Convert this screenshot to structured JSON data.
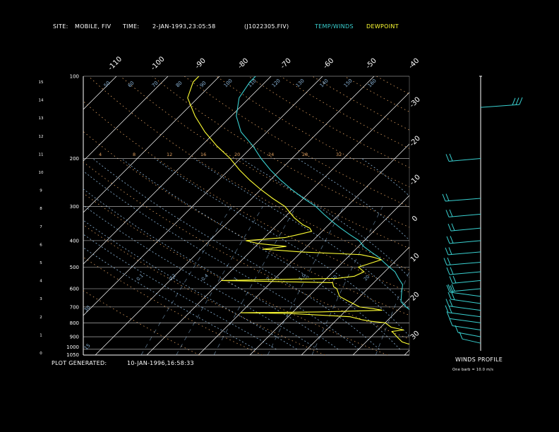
{
  "header": {
    "site_label": "SITE:",
    "site_value": "MOBILE, FIV",
    "time_label": "TIME:",
    "time_value": "2-JAN-1993,23:05:58",
    "file_id": "(J1022305.FIV)",
    "legend_temp": "TEMP/WINDS",
    "legend_dew": "DEWPOINT"
  },
  "footer": {
    "generated_label": "PLOT GENERATED:",
    "generated_value": "10-JAN-1996,16:58:33"
  },
  "wind_panel": {
    "title": "WINDS PROFILE",
    "note": "One barb = 10.0 m/s"
  },
  "colors": {
    "temperature": "#39d0d0",
    "dewpoint": "#ffff33",
    "isobar": "#ffffff",
    "isotherm": "#ffffff",
    "dry_adiabat": "#e0a060",
    "moist_adiabat": "#8ab4d8",
    "mixing_ratio": "#8ab4d8",
    "wind_barb": "#39d0d0",
    "header_temp": "#39d0d0",
    "header_dew": "#ffff33"
  },
  "chart_data": {
    "type": "line",
    "pressure_levels": [
      100,
      200,
      300,
      400,
      500,
      600,
      700,
      800,
      900,
      1000,
      1050
    ],
    "height_ticks_km": [
      0,
      1,
      2,
      3,
      4,
      5,
      6,
      7,
      8,
      9,
      10,
      11,
      12,
      13,
      14,
      15
    ],
    "top_isotherm_labels": [
      "-110",
      "-100",
      "-90",
      "-80",
      "-70",
      "-60",
      "-50",
      "-40"
    ],
    "right_isotherm_labels": [
      "-30",
      "-20",
      "-10",
      "0",
      "10",
      "20",
      "30"
    ],
    "dry_adiabat_labels": [
      "4",
      "8",
      "12",
      "16",
      "20",
      "24",
      "28",
      "32"
    ],
    "moist_adiabat_labels": [
      "15",
      "30",
      "50",
      "60",
      "70",
      "80",
      "90",
      "100",
      "110",
      "120",
      "130",
      "140",
      "150",
      "160"
    ],
    "mixing_ratio_labels": [
      "0.1",
      "0.2",
      "0.4",
      "1",
      "2",
      "5.0",
      "10",
      "20"
    ],
    "y_scale": "log",
    "ylim": [
      1050,
      100
    ],
    "series": [
      {
        "key": "temp",
        "points": [
          [
            1050,
            19
          ],
          [
            1000,
            15
          ],
          [
            975,
            13.5
          ],
          [
            950,
            12
          ],
          [
            925,
            10
          ],
          [
            900,
            9
          ],
          [
            880,
            8
          ],
          [
            850,
            7.5
          ],
          [
            820,
            6
          ],
          [
            790,
            5
          ],
          [
            760,
            4
          ],
          [
            720,
            2.5
          ],
          [
            700,
            1
          ],
          [
            670,
            -1
          ],
          [
            640,
            -2
          ],
          [
            610,
            -3
          ],
          [
            580,
            -4
          ],
          [
            550,
            -6
          ],
          [
            520,
            -8
          ],
          [
            500,
            -10
          ],
          [
            480,
            -12
          ],
          [
            460,
            -14
          ],
          [
            440,
            -16.5
          ],
          [
            420,
            -19
          ],
          [
            400,
            -21
          ],
          [
            380,
            -24
          ],
          [
            360,
            -27
          ],
          [
            340,
            -30
          ],
          [
            320,
            -33
          ],
          [
            300,
            -36
          ],
          [
            280,
            -40
          ],
          [
            260,
            -44
          ],
          [
            240,
            -48
          ],
          [
            220,
            -52
          ],
          [
            200,
            -56
          ],
          [
            180,
            -60
          ],
          [
            160,
            -65
          ],
          [
            140,
            -69
          ],
          [
            120,
            -72
          ],
          [
            105,
            -73
          ],
          [
            100,
            -73
          ]
        ]
      },
      {
        "key": "dew",
        "points": [
          [
            1050,
            14
          ],
          [
            1000,
            14
          ],
          [
            975,
            12
          ],
          [
            965,
            10
          ],
          [
            955,
            8.5
          ],
          [
            940,
            7
          ],
          [
            900,
            5
          ],
          [
            880,
            4
          ],
          [
            860,
            3
          ],
          [
            850,
            5
          ],
          [
            830,
            2
          ],
          [
            800,
            0
          ],
          [
            790,
            -3
          ],
          [
            780,
            -5
          ],
          [
            760,
            -8
          ],
          [
            740,
            -20
          ],
          [
            735,
            -30
          ],
          [
            730,
            -15
          ],
          [
            720,
            -3
          ],
          [
            710,
            -5
          ],
          [
            700,
            -8
          ],
          [
            680,
            -10
          ],
          [
            660,
            -12
          ],
          [
            640,
            -14
          ],
          [
            600,
            -16
          ],
          [
            590,
            -17
          ],
          [
            570,
            -18
          ],
          [
            560,
            -40
          ],
          [
            555,
            -30
          ],
          [
            550,
            -18
          ],
          [
            540,
            -15
          ],
          [
            520,
            -14
          ],
          [
            500,
            -16
          ],
          [
            490,
            -15
          ],
          [
            470,
            -13
          ],
          [
            460,
            -15
          ],
          [
            450,
            -18
          ],
          [
            440,
            -30
          ],
          [
            430,
            -38
          ],
          [
            420,
            -34
          ],
          [
            410,
            -40
          ],
          [
            400,
            -43
          ],
          [
            390,
            -36
          ],
          [
            380,
            -34
          ],
          [
            370,
            -32
          ],
          [
            360,
            -33
          ],
          [
            350,
            -35
          ],
          [
            330,
            -38
          ],
          [
            300,
            -42
          ],
          [
            280,
            -46
          ],
          [
            260,
            -50
          ],
          [
            240,
            -54
          ],
          [
            220,
            -58
          ],
          [
            200,
            -62
          ],
          [
            180,
            -67
          ],
          [
            160,
            -72
          ],
          [
            140,
            -77
          ],
          [
            120,
            -82
          ],
          [
            105,
            -84
          ],
          [
            100,
            -84
          ]
        ]
      }
    ],
    "wind_barbs": [
      {
        "p": 130,
        "length": 55,
        "barbs": 3
      },
      {
        "p": 200,
        "length": 45,
        "barbs": 2
      },
      {
        "p": 280,
        "length": 50,
        "barbs": 2
      },
      {
        "p": 320,
        "length": 45,
        "barbs": 2
      },
      {
        "p": 360,
        "length": 42,
        "barbs": 2
      },
      {
        "p": 400,
        "length": 44,
        "barbs": 2
      },
      {
        "p": 440,
        "length": 46,
        "barbs": 2
      },
      {
        "p": 480,
        "length": 48,
        "barbs": 2
      },
      {
        "p": 520,
        "length": 44,
        "barbs": 2
      },
      {
        "p": 560,
        "length": 40,
        "barbs": 2
      },
      {
        "p": 600,
        "length": 42,
        "barbs": 2
      },
      {
        "p": 640,
        "length": 44,
        "barbs": 2
      },
      {
        "p": 680,
        "length": 42,
        "barbs": 2
      },
      {
        "p": 720,
        "length": 45,
        "barbs": 2
      },
      {
        "p": 760,
        "length": 46,
        "barbs": 2
      },
      {
        "p": 800,
        "length": 44,
        "barbs": 1
      },
      {
        "p": 850,
        "length": 40,
        "barbs": 1
      },
      {
        "p": 900,
        "length": 32,
        "barbs": 1
      },
      {
        "p": 950,
        "length": 26,
        "barbs": 1
      }
    ]
  }
}
